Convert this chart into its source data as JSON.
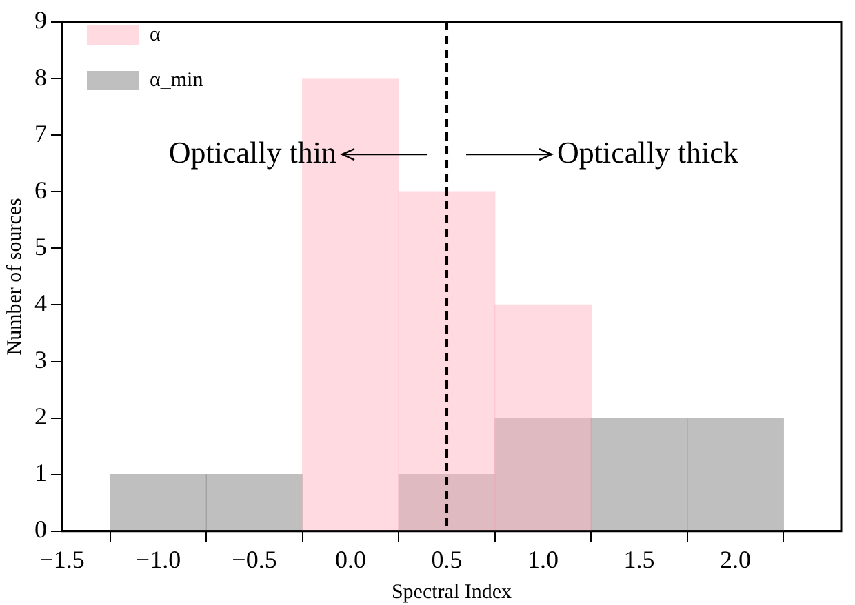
{
  "chart_data": {
    "type": "histogram",
    "xlabel": "Spectral Index",
    "ylabel": "Number of sources",
    "bins": [
      -1.25,
      -0.75,
      -0.25,
      0.25,
      0.75,
      1.25,
      1.75,
      2.25
    ],
    "series": [
      {
        "name": "α",
        "color": "#ffb6c1",
        "values": [
          0,
          0,
          8,
          6,
          4,
          0,
          0
        ]
      },
      {
        "name": "α_min",
        "color": "#808080",
        "values": [
          1,
          1,
          0,
          1,
          2,
          2,
          2
        ]
      }
    ],
    "xlim": [
      -1.5,
      2.55
    ],
    "xticks": [
      -1.5,
      {
        "value": -1,
        "label": "−1.0"
      },
      -0.5,
      {
        "value": 0,
        "label": "0.0"
      },
      0.5,
      {
        "value": 1,
        "label": "1.0"
      },
      1.5,
      {
        "value": 2,
        "label": "2.0"
      }
    ],
    "ylim": [
      0,
      9
    ],
    "yticks": [
      0,
      1,
      2,
      3,
      4,
      5,
      6,
      7,
      8,
      9
    ],
    "ref_lines": [
      {
        "axis": "x",
        "value": 0.5,
        "color": "#000000",
        "line_style": "dashed"
      }
    ],
    "annotations": [
      "Optically thin",
      "Optically thick"
    ],
    "legend": "top left"
  }
}
